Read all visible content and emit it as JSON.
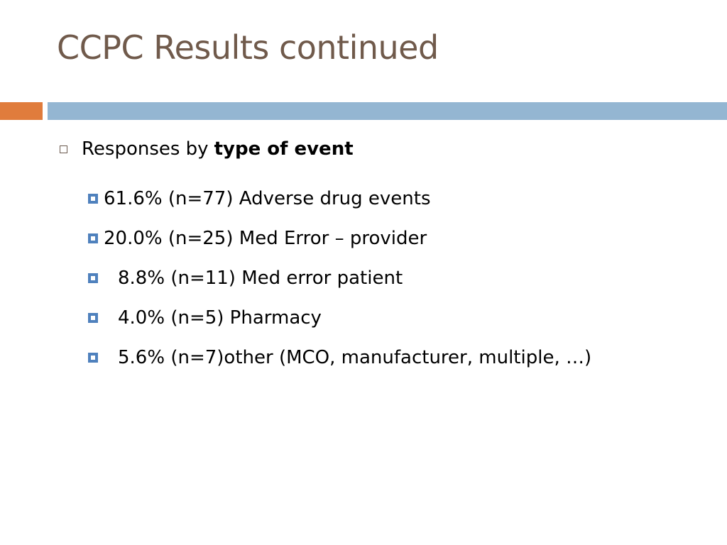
{
  "slide": {
    "title": "CCPC Results continued",
    "level1": {
      "prefix": "Responses by",
      "emphasis": "type of event"
    },
    "items": [
      {
        "text": "61.6% (n=77) Adverse drug events"
      },
      {
        "text": "20.0% (n=25) Med Error – provider"
      },
      {
        "text": "8.8% (n=11) Med error patient"
      },
      {
        "text": "4.0% (n=5) Pharmacy"
      },
      {
        "text": "5.6% (n=7)other (MCO, manufacturer, multiple, …)"
      }
    ]
  },
  "colors": {
    "title": "#705a4b",
    "accent_band": "#e07c3c",
    "main_band": "#94b6d2",
    "bullet": "#4f81bd"
  }
}
